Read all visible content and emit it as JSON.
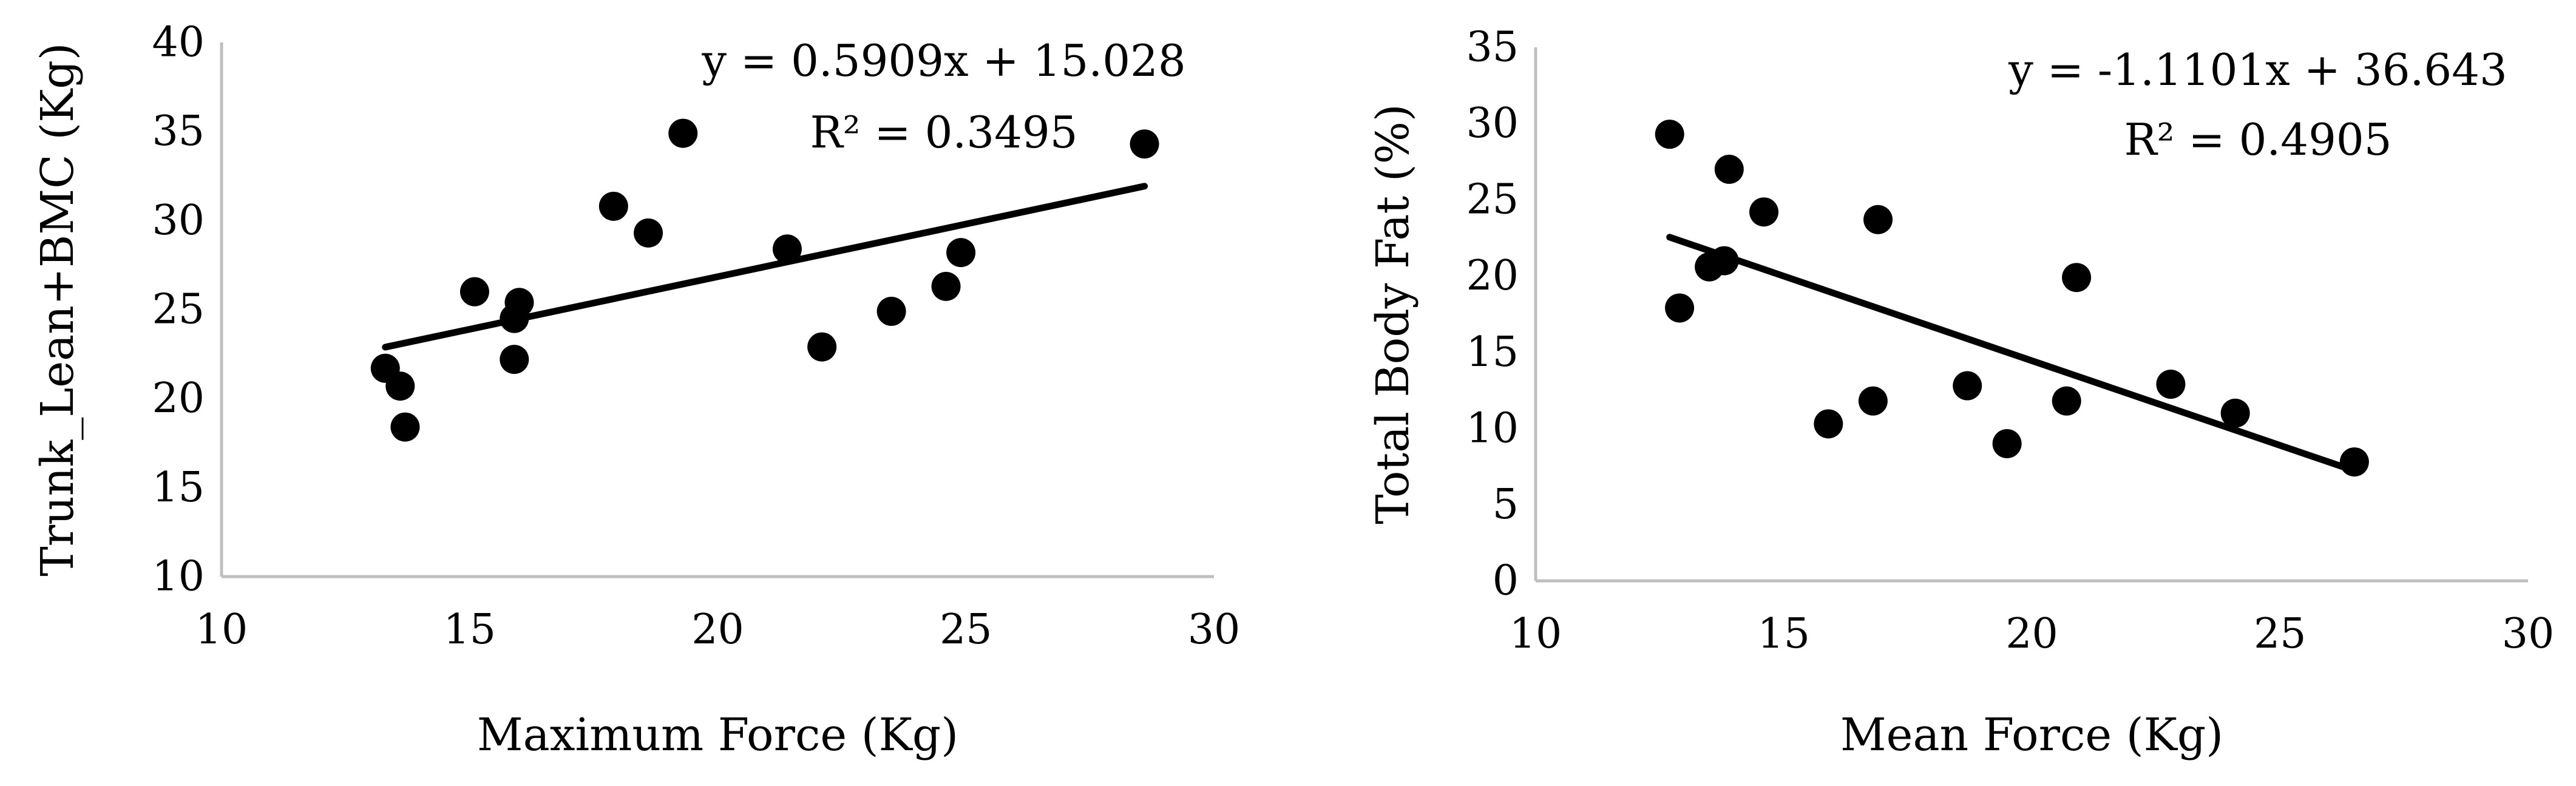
{
  "chart_data": [
    {
      "type": "scatter",
      "title": "",
      "xlabel": "Maximum Force  (Kg)",
      "ylabel": "Trunk_Lean+BMC (Kg)",
      "xlim": [
        10,
        30
      ],
      "ylim": [
        10,
        40
      ],
      "x_ticks": [
        10,
        15,
        20,
        25,
        30
      ],
      "y_ticks": [
        10,
        15,
        20,
        25,
        30,
        35,
        40
      ],
      "grid": false,
      "legend": "none",
      "marker_color": "#000000",
      "points": [
        {
          "x": 13.3,
          "y": 21.7
        },
        {
          "x": 13.6,
          "y": 20.7
        },
        {
          "x": 13.7,
          "y": 18.4
        },
        {
          "x": 15.1,
          "y": 26.0
        },
        {
          "x": 15.9,
          "y": 24.5
        },
        {
          "x": 16.0,
          "y": 25.4
        },
        {
          "x": 15.9,
          "y": 22.2
        },
        {
          "x": 17.9,
          "y": 30.8
        },
        {
          "x": 18.6,
          "y": 29.3
        },
        {
          "x": 19.3,
          "y": 34.9
        },
        {
          "x": 21.4,
          "y": 28.4
        },
        {
          "x": 22.1,
          "y": 22.9
        },
        {
          "x": 23.5,
          "y": 24.9
        },
        {
          "x": 24.6,
          "y": 26.3
        },
        {
          "x": 24.9,
          "y": 28.2
        },
        {
          "x": 28.6,
          "y": 34.3
        }
      ],
      "trendline": {
        "slope": 0.5909,
        "intercept": 15.028,
        "x_start": 13.3,
        "x_end": 28.6
      },
      "annotations": [
        "y = 0.5909x + 15.028",
        "R² = 0.3495"
      ]
    },
    {
      "type": "scatter",
      "title": "",
      "xlabel": "Mean Force (Kg)",
      "ylabel": "Total Body Fat (%)",
      "xlim": [
        10,
        30
      ],
      "ylim": [
        0,
        35
      ],
      "x_ticks": [
        10,
        15,
        20,
        25,
        30
      ],
      "y_ticks": [
        0,
        5,
        10,
        15,
        20,
        25,
        30,
        35
      ],
      "grid": false,
      "legend": "none",
      "marker_color": "#000000",
      "points": [
        {
          "x": 12.7,
          "y": 29.3
        },
        {
          "x": 12.9,
          "y": 17.9
        },
        {
          "x": 13.5,
          "y": 20.6
        },
        {
          "x": 13.8,
          "y": 21.0
        },
        {
          "x": 13.9,
          "y": 27.0
        },
        {
          "x": 14.6,
          "y": 24.2
        },
        {
          "x": 15.9,
          "y": 10.3
        },
        {
          "x": 16.8,
          "y": 11.8
        },
        {
          "x": 16.9,
          "y": 23.7
        },
        {
          "x": 18.7,
          "y": 12.8
        },
        {
          "x": 19.5,
          "y": 9.0
        },
        {
          "x": 20.7,
          "y": 11.8
        },
        {
          "x": 20.9,
          "y": 19.9
        },
        {
          "x": 22.8,
          "y": 12.9
        },
        {
          "x": 24.1,
          "y": 11.0
        },
        {
          "x": 26.5,
          "y": 7.8
        }
      ],
      "trendline": {
        "slope": -1.1101,
        "intercept": 36.643,
        "x_start": 12.7,
        "x_end": 26.5
      },
      "annotations": [
        "y = -1.1101x + 36.643",
        "R² = 0.4905"
      ]
    }
  ]
}
